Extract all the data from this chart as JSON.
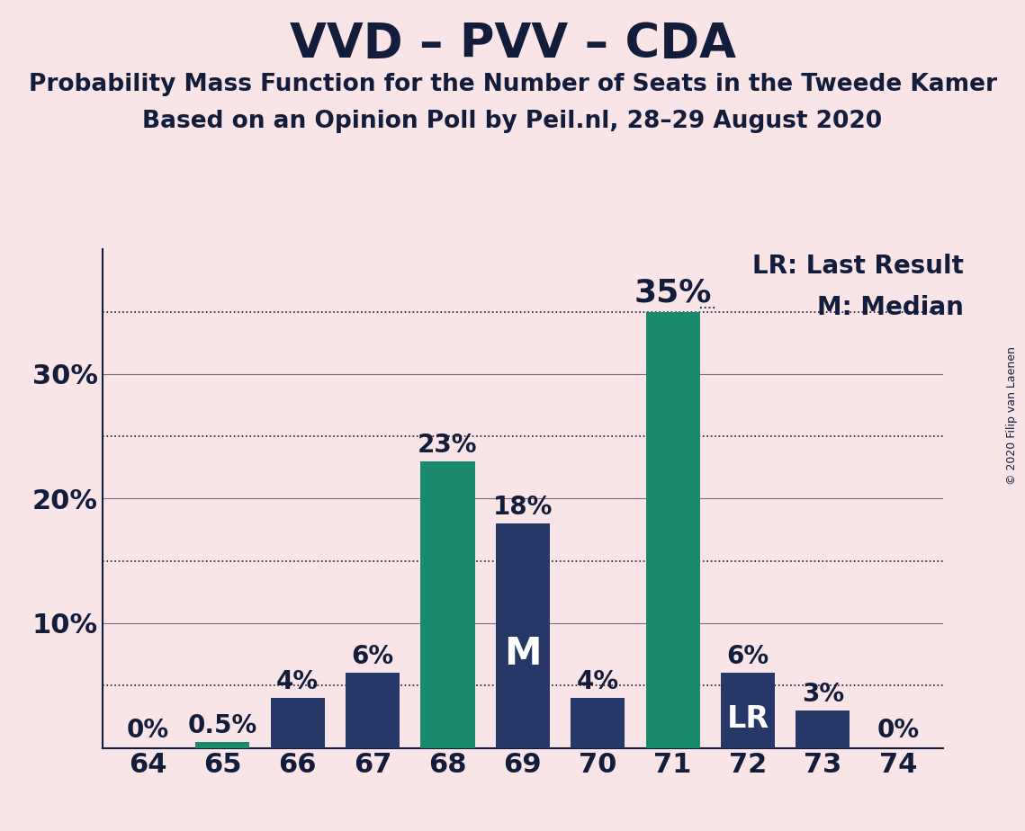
{
  "title": "VVD – PVV – CDA",
  "subtitle1": "Probability Mass Function for the Number of Seats in the Tweede Kamer",
  "subtitle2": "Based on an Opinion Poll by Peil.nl, 28–29 August 2020",
  "copyright": "© 2020 Filip van Laenen",
  "categories": [
    64,
    65,
    66,
    67,
    68,
    69,
    70,
    71,
    72,
    73,
    74
  ],
  "values": [
    0.0,
    0.5,
    4.0,
    6.0,
    23.0,
    18.0,
    4.0,
    35.0,
    6.0,
    3.0,
    0.0
  ],
  "bar_colors": [
    "#253868",
    "#1a8a6e",
    "#253868",
    "#253868",
    "#1a8a6e",
    "#253868",
    "#253868",
    "#1a8a6e",
    "#253868",
    "#253868",
    "#253868"
  ],
  "background_color": "#f9e4e8",
  "label_color_dark": "#131d3b",
  "bar_labels": [
    "0%",
    "0.5%",
    "4%",
    "6%",
    "23%",
    "18%",
    "4%",
    "35%",
    "6%",
    "3%",
    "0%"
  ],
  "m_bar_index": 5,
  "lr_bar_index": 8,
  "solid_grid": [
    10,
    20,
    30
  ],
  "dotted_grid": [
    5,
    15,
    25,
    35
  ],
  "ylim": [
    0,
    40
  ],
  "legend_lr": "LR: Last Result",
  "legend_m": "M: Median",
  "title_fontsize": 38,
  "subtitle_fontsize": 19,
  "tick_fontsize": 22,
  "bar_label_fontsize": 20,
  "big_label_fontsize": 26,
  "m_label_fontsize": 30,
  "lr_label_fontsize": 24,
  "legend_fontsize": 20
}
